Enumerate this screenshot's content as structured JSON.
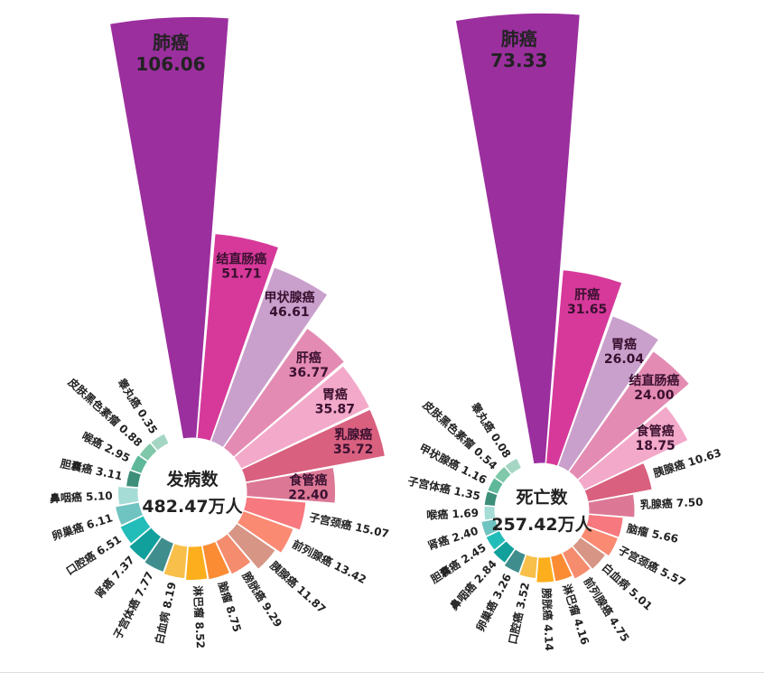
{
  "chart_data": [
    {
      "type": "rose",
      "center_title": "发病数",
      "center_total": "482.47万人",
      "categories": [
        "肺癌",
        "结直肠癌",
        "甲状腺癌",
        "肝癌",
        "胃癌",
        "乳腺癌",
        "食管癌",
        "子宫颈癌",
        "前列腺癌",
        "胰腺癌",
        "膀胱癌",
        "脑瘤",
        "淋巴瘤",
        "白血病",
        "子宫体癌",
        "肾癌",
        "口腔癌",
        "卵巢癌",
        "鼻咽癌",
        "胆囊癌",
        "喉癌",
        "皮肤黑色素瘤",
        "睾丸癌"
      ],
      "values": [
        "106.06",
        "51.71",
        "46.61",
        "36.77",
        "35.87",
        "35.72",
        "22.40",
        "15.07",
        "13.42",
        "11.87",
        "9.29",
        "8.75",
        "8.52",
        "8.19",
        "7.77",
        "7.37",
        "6.51",
        "6.11",
        "5.10",
        "3.11",
        "2.95",
        "0.88",
        "0.35"
      ]
    },
    {
      "type": "rose",
      "center_title": "死亡数",
      "center_total": "257.42万人",
      "categories": [
        "肺癌",
        "肝癌",
        "胃癌",
        "结直肠癌",
        "食管癌",
        "胰腺癌",
        "乳腺癌",
        "脑瘤",
        "子宫颈癌",
        "白血病",
        "前列腺癌",
        "淋巴瘤",
        "膀胱癌",
        "口腔癌",
        "卵巢癌",
        "鼻咽癌",
        "胆囊癌",
        "肾癌",
        "喉癌",
        "子宫体癌",
        "甲状腺癌",
        "皮肤黑色素瘤",
        "睾丸癌"
      ],
      "values": [
        "73.33",
        "31.65",
        "26.04",
        "24.00",
        "18.75",
        "10.63",
        "7.50",
        "5.66",
        "5.57",
        "5.01",
        "4.75",
        "4.16",
        "4.14",
        "3.52",
        "3.26",
        "2.84",
        "2.45",
        "2.40",
        "1.69",
        "1.35",
        "1.16",
        "0.54",
        "0.08"
      ]
    }
  ],
  "colors": [
    "#9b2f9e",
    "#d6399a",
    "#c9a0cc",
    "#e48bb3",
    "#f3a9c9",
    "#d9607f",
    "#dc7896",
    "#f7787e",
    "#fb8a72",
    "#d79585",
    "#f58c6e",
    "#fb8c34",
    "#fcae1d",
    "#f8c04a",
    "#3f8e8d",
    "#11a09b",
    "#22bdb9",
    "#6fc3c0",
    "#a6dcd6",
    "#3d8f7a",
    "#5fb89a",
    "#7fc8a9",
    "#a5d6c4"
  ]
}
